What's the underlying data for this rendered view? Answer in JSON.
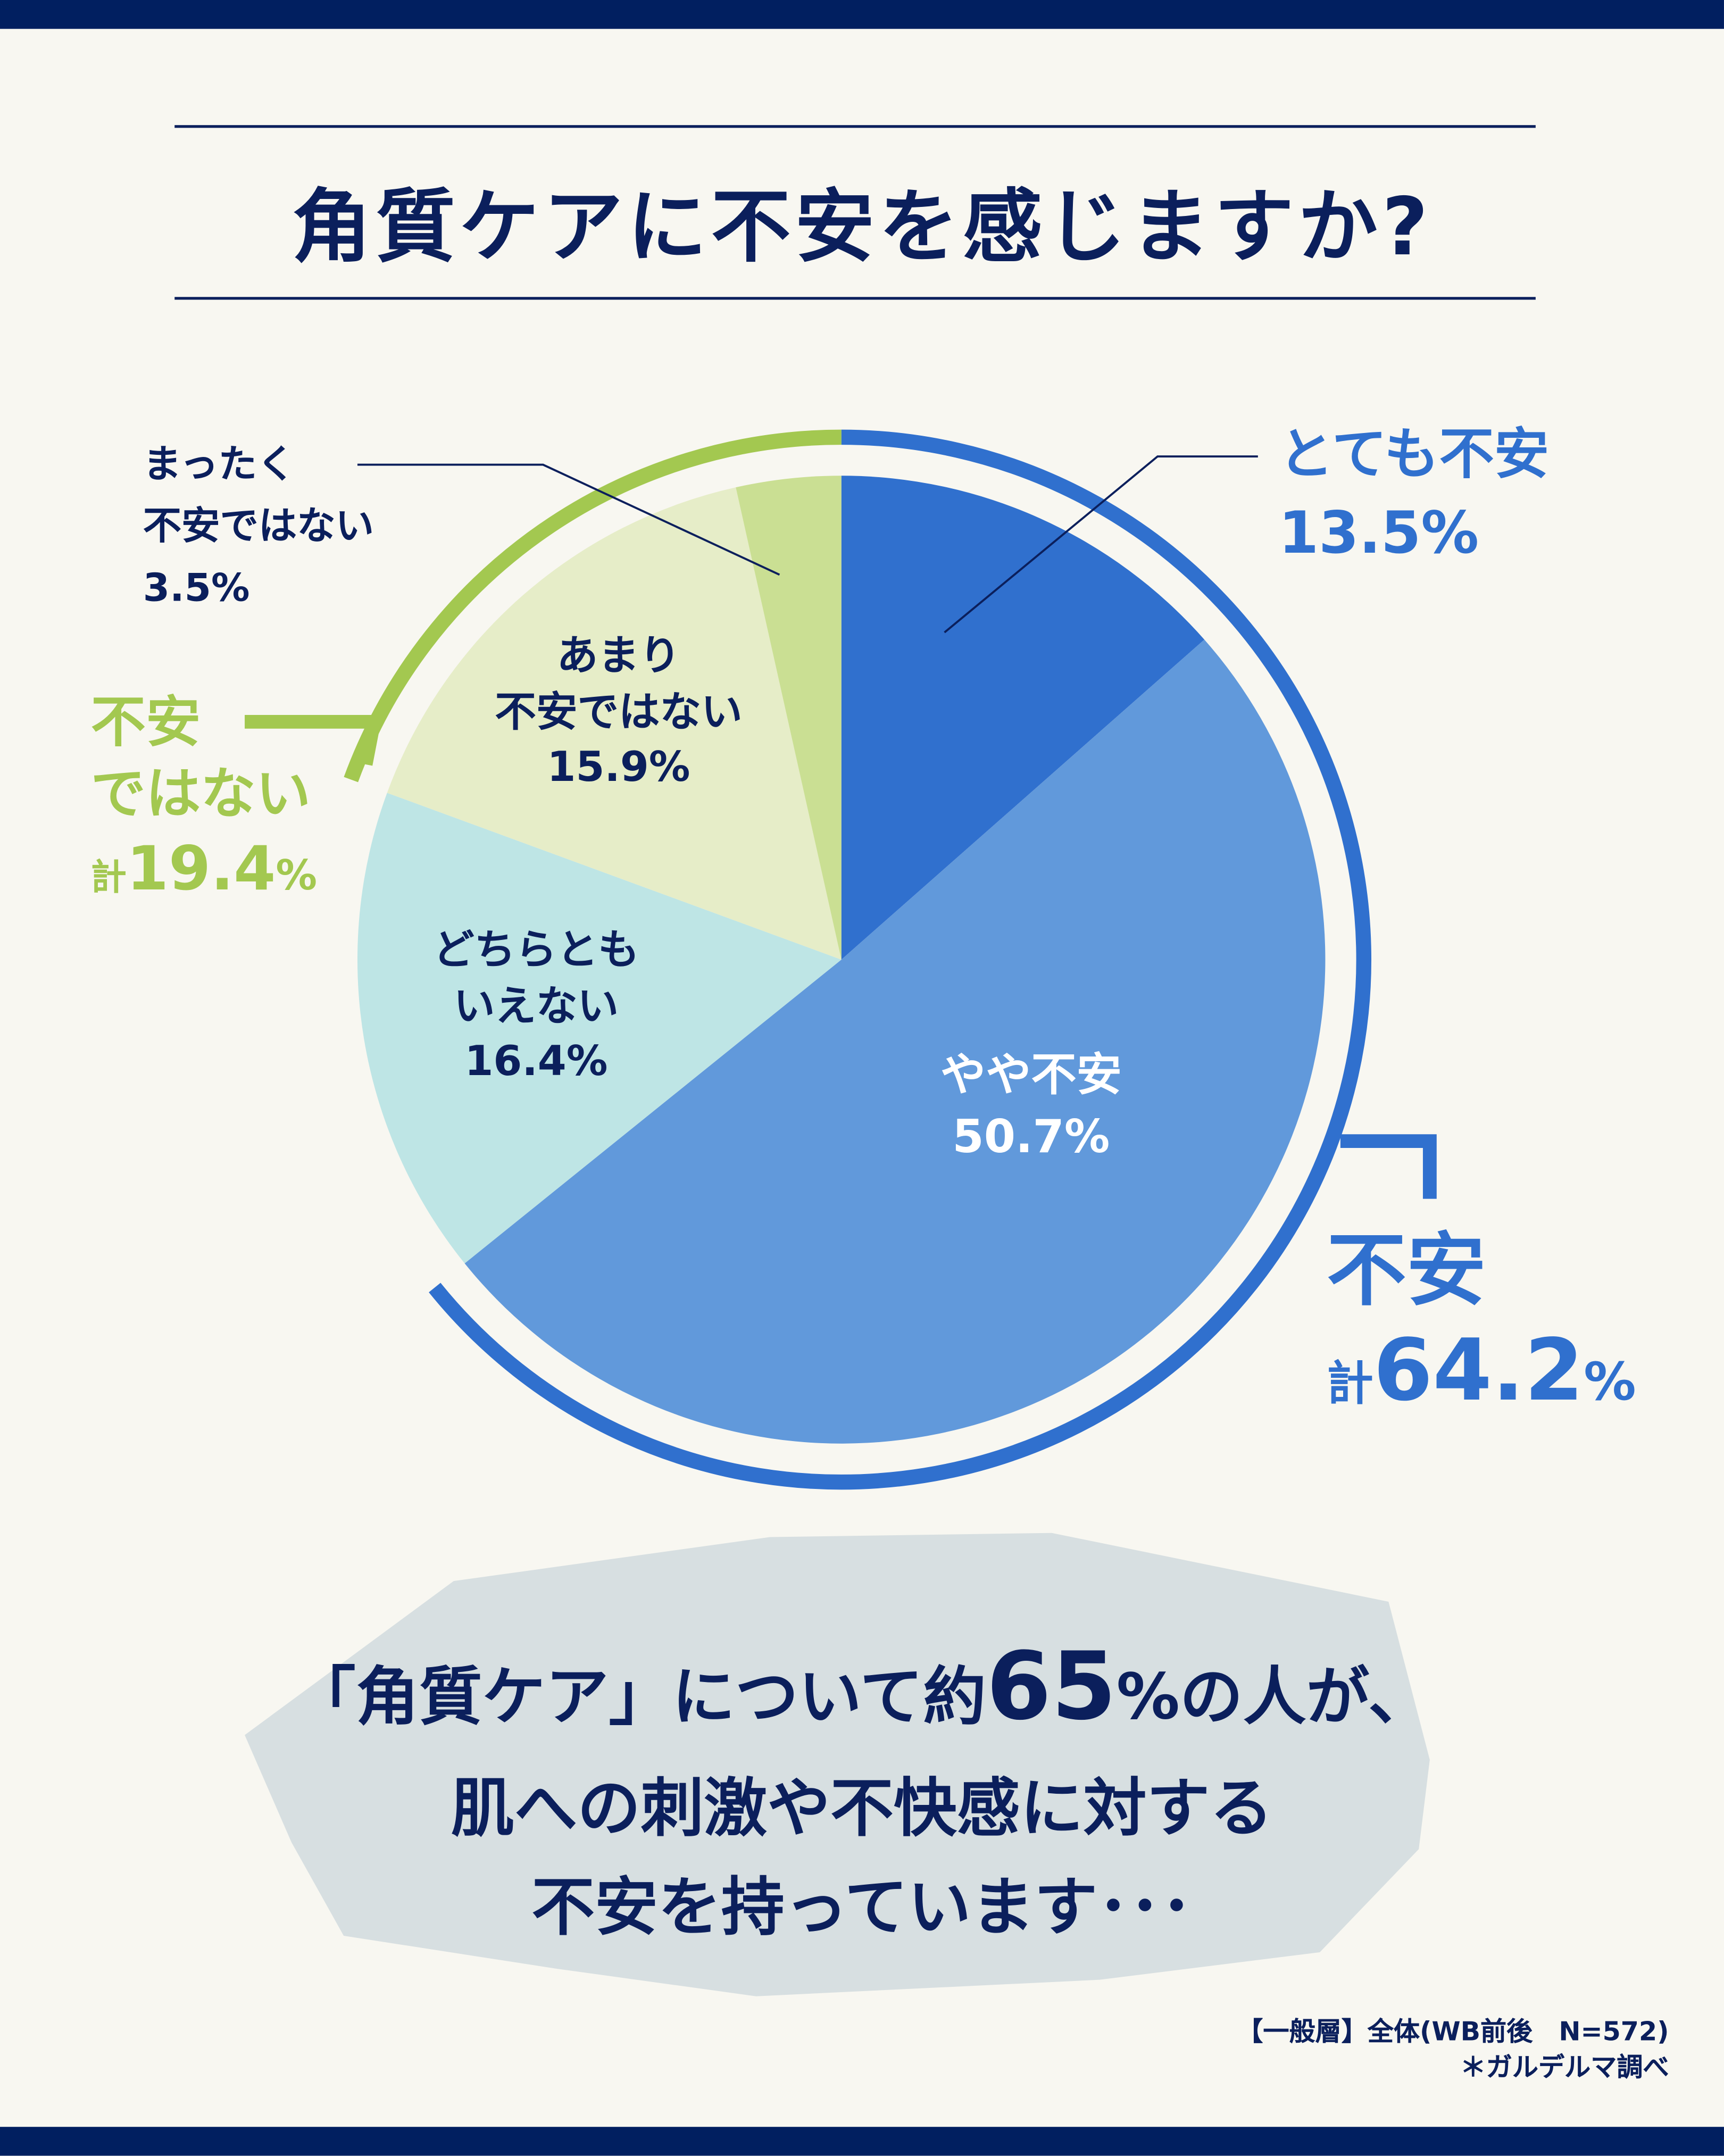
{
  "title": "角質ケアに不安を感じますか?",
  "chart_data": {
    "type": "pie",
    "title": "角質ケアに不安を感じますか?",
    "slices": [
      {
        "label": "とても不安",
        "value": 13.5,
        "display": "13.5%",
        "color": "#3070CE"
      },
      {
        "label": "やや不安",
        "value": 50.7,
        "display": "50.7%",
        "color": "#6199DB"
      },
      {
        "label": "どちらともいえない",
        "value": 16.4,
        "display": "16.4%",
        "color": "#BEE5E5"
      },
      {
        "label": "あまり不安ではない",
        "value": 15.9,
        "display": "15.9%",
        "color": "#E6EDC8"
      },
      {
        "label": "まったく不安ではない",
        "value": 3.5,
        "display": "3.5%",
        "color": "#CADF93"
      }
    ],
    "groups": [
      {
        "label": "不安",
        "total_prefix": "計",
        "value": 64.2,
        "display": "64.2",
        "unit": "%",
        "color": "#3070CE"
      },
      {
        "label": "不安ではない",
        "label_line1": "不安",
        "label_line2": "ではない",
        "total_prefix": "計",
        "value": 19.4,
        "display": "19.4",
        "unit": "%",
        "color": "#A3C850"
      }
    ]
  },
  "labels": {
    "very_line1": "とても不安",
    "very_value": "13.5%",
    "somewhat_line1": "やや不安",
    "somewhat_value": "50.7%",
    "neither_line1": "どちらとも",
    "neither_line2": "いえない",
    "neither_value": "16.4%",
    "notmuch_line1": "あまり",
    "notmuch_line2": "不安ではない",
    "notmuch_value": "15.9%",
    "notatall_line1": "まったく",
    "notatall_line2": "不安ではない",
    "notatall_value": "3.5%"
  },
  "message": {
    "part1": "「角質ケア」について約",
    "number": "65",
    "part2": "%の人が、",
    "line2": "肌への刺激や不快感に対する",
    "line3": "不安を持っています･･･"
  },
  "footer": {
    "line1": "【一般層】全体(WB前後　N=572)",
    "line2": "＊ガルデルマ調べ"
  }
}
